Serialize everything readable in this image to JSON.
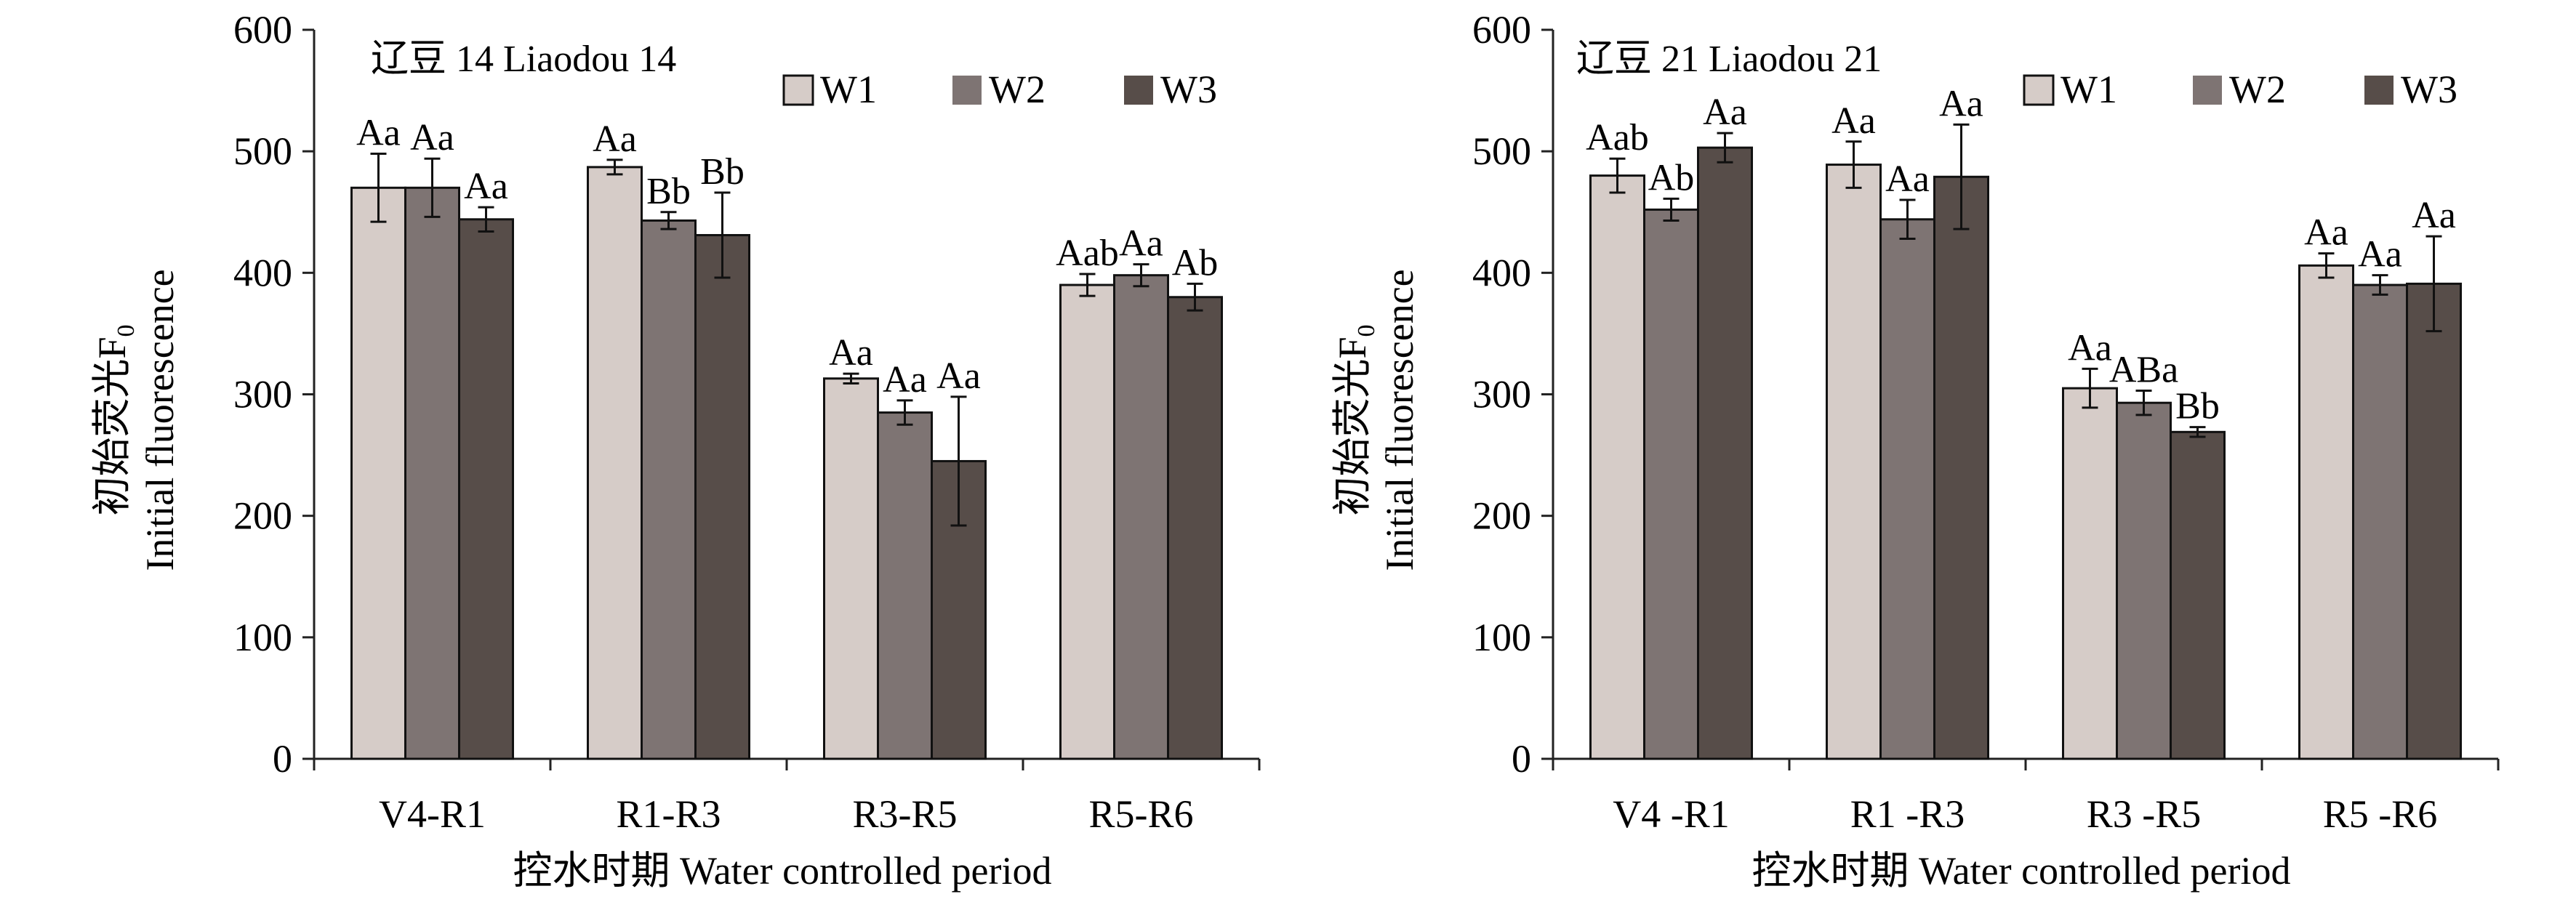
{
  "colors": {
    "W1": "#d6ccc8",
    "W2": "#7e7473",
    "W3": "#574d49",
    "axis": "#222222",
    "error": "#111111"
  },
  "chart_data": [
    {
      "type": "bar",
      "title": "辽豆 14 Liaodou 14",
      "ylabel_cn": "初始荧光F",
      "ylabel_sub": "0",
      "ylabel_en": "Initial fluorescence",
      "xlabel": "控水时期 Water controlled period",
      "categories": [
        "V4-R1",
        "R1-R3",
        "R3-R5",
        "R5-R6"
      ],
      "ylim": [
        0,
        600
      ],
      "yticks": [
        0,
        100,
        200,
        300,
        400,
        500,
        600
      ],
      "legend_position": "top-right",
      "series": [
        {
          "name": "W1",
          "values": [
            470,
            487,
            313,
            390
          ],
          "errors": [
            28,
            6,
            4,
            9
          ],
          "labels": [
            "Aa",
            "Aa",
            "Aa",
            "Aab"
          ]
        },
        {
          "name": "W2",
          "values": [
            470,
            443,
            285,
            398
          ],
          "errors": [
            24,
            7,
            10,
            9
          ],
          "labels": [
            "Aa",
            "Bb",
            "Aa",
            "Aa"
          ]
        },
        {
          "name": "W3",
          "values": [
            444,
            431,
            245,
            380
          ],
          "errors": [
            10,
            35,
            53,
            11
          ],
          "labels": [
            "Aa",
            "Bb",
            "Aa",
            "Ab"
          ]
        }
      ]
    },
    {
      "type": "bar",
      "title": "辽豆 21 Liaodou 21",
      "ylabel_cn": "初始荧光F",
      "ylabel_sub": "0",
      "ylabel_en": "Initial fluorescence",
      "xlabel": "控水时期 Water controlled period",
      "categories": [
        "V4 -R1",
        "R1 -R3",
        "R3 -R5",
        "R5 -R6"
      ],
      "ylim": [
        0,
        600
      ],
      "yticks": [
        0,
        100,
        200,
        300,
        400,
        500,
        600
      ],
      "legend_position": "top-right",
      "series": [
        {
          "name": "W1",
          "values": [
            480,
            489,
            305,
            406
          ],
          "errors": [
            14,
            19,
            16,
            10
          ],
          "labels": [
            "Aab",
            "Aa",
            "Aa",
            "Aa"
          ]
        },
        {
          "name": "W2",
          "values": [
            452,
            444,
            293,
            390
          ],
          "errors": [
            9,
            16,
            10,
            8
          ],
          "labels": [
            "Ab",
            "Aa",
            "ABa",
            "Aa"
          ]
        },
        {
          "name": "W3",
          "values": [
            503,
            479,
            269,
            391
          ],
          "errors": [
            12,
            43,
            4,
            39
          ],
          "labels": [
            "Aa",
            "Aa",
            "Bb",
            "Aa"
          ]
        }
      ]
    }
  ]
}
